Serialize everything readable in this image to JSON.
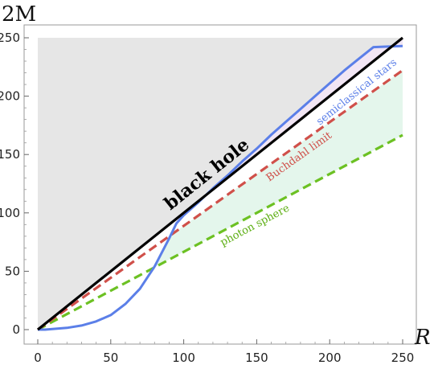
{
  "chart_data": {
    "type": "line",
    "xlabel": "R",
    "ylabel": "2M",
    "xlim": [
      0,
      250
    ],
    "ylim": [
      0,
      250
    ],
    "x_ticks": [
      0,
      50,
      100,
      150,
      200,
      250
    ],
    "y_ticks": [
      0,
      50,
      100,
      150,
      200,
      250
    ],
    "annotations": {
      "black_hole": "black hole",
      "semiclassical": "semiclassical stars",
      "buchdahl": "Buchdahl limit",
      "photon": "photon sphere"
    },
    "series": [
      {
        "name": "black hole",
        "color": "#000000",
        "style": "solid",
        "x": [
          0,
          250
        ],
        "y": [
          0,
          250
        ]
      },
      {
        "name": "Buchdahl limit",
        "color": "#d0504a",
        "style": "dashed",
        "x": [
          0,
          250
        ],
        "y": [
          0,
          222.2
        ]
      },
      {
        "name": "photon sphere",
        "color": "#6cc123",
        "style": "dashed",
        "x": [
          0,
          250
        ],
        "y": [
          0,
          166.7
        ]
      },
      {
        "name": "semiclassical stars",
        "color": "#5b7fe8",
        "style": "solid",
        "x": [
          0,
          5,
          10,
          20,
          30,
          40,
          50,
          60,
          70,
          80,
          90,
          95,
          100,
          110,
          120,
          130,
          140,
          150,
          160,
          170,
          180,
          190,
          200,
          210,
          220,
          230,
          240,
          250
        ],
        "y": [
          0,
          0,
          0.5,
          1.5,
          3.5,
          7,
          12.5,
          22,
          35,
          54,
          78,
          91,
          98,
          109,
          121,
          132,
          144,
          155,
          167,
          178,
          189,
          200,
          211,
          222,
          232,
          242,
          242.5,
          243
        ]
      }
    ],
    "regions": {
      "above_black_hole_color": "#e6e6e6",
      "buchdahl_to_bh_color": "#f2e6f4",
      "photon_to_buchdahl_color": "#e4f6ec"
    }
  }
}
